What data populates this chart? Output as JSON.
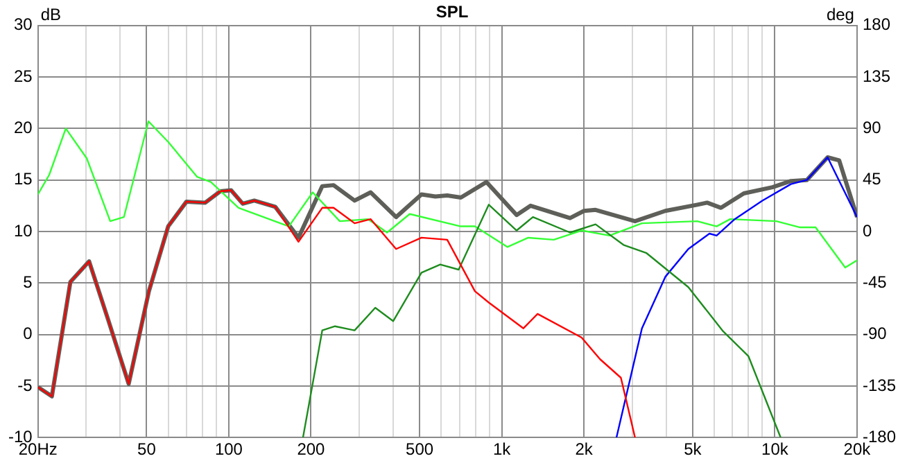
{
  "chart_data": {
    "type": "line",
    "title": "SPL",
    "ylabel": "dB",
    "y2label": "deg",
    "log": "x",
    "grid": true,
    "legend": false,
    "marker": "none",
    "line_style": "solid",
    "xlim": [
      20,
      20000
    ],
    "xticks": [
      {
        "value": 20,
        "label": "20Hz"
      },
      {
        "value": 30,
        "label": null
      },
      {
        "value": 40,
        "label": null
      },
      50,
      {
        "value": 60,
        "label": null
      },
      {
        "value": 70,
        "label": null
      },
      {
        "value": 80,
        "label": null
      },
      {
        "value": 90,
        "label": null
      },
      100,
      200,
      {
        "value": 300,
        "label": null
      },
      {
        "value": 400,
        "label": null
      },
      500,
      {
        "value": 600,
        "label": null
      },
      {
        "value": 700,
        "label": null
      },
      {
        "value": 800,
        "label": null
      },
      {
        "value": 900,
        "label": null
      },
      {
        "value": 1000,
        "label": "1k"
      },
      {
        "value": 2000,
        "label": "2k"
      },
      {
        "value": 3000,
        "label": null
      },
      {
        "value": 4000,
        "label": null
      },
      {
        "value": 5000,
        "label": "5k"
      },
      {
        "value": 6000,
        "label": null
      },
      {
        "value": 7000,
        "label": null
      },
      {
        "value": 8000,
        "label": null
      },
      {
        "value": 9000,
        "label": null
      },
      {
        "value": 10000,
        "label": "10k"
      },
      {
        "value": 20000,
        "label": "20k"
      }
    ],
    "ylim": [
      -10,
      30
    ],
    "yticks": [
      -10,
      -5,
      0,
      5,
      10,
      15,
      20,
      25,
      30
    ],
    "y2lim": [
      -180,
      180
    ],
    "y2ticks": [
      -180,
      -135,
      -90,
      -45,
      0,
      45,
      90,
      135,
      180
    ],
    "series": [
      {
        "color": "#5f5f5a",
        "x": [
          20,
          22.5,
          26.3,
          30.8,
          36.1,
          43,
          51,
          60,
          70,
          82,
          93,
          102,
          112.5,
          124,
          148,
          180,
          220,
          242,
          289,
          331,
          410,
          508,
          571,
          631,
          708,
          879,
          1133,
          1275,
          1778,
          2000,
          2205,
          3075,
          3970,
          5200,
          5650,
          6350,
          7700,
          9800,
          11450,
          13100,
          15600,
          17200,
          20000
        ],
        "values": [
          -5.1,
          -6,
          5.1,
          7.1,
          1.5,
          -4.8,
          4.2,
          10.5,
          12.9,
          12.8,
          13.9,
          14,
          12.7,
          13,
          12.4,
          9.4,
          14.4,
          14.5,
          13,
          13.8,
          11.4,
          13.6,
          13.4,
          13.5,
          13.3,
          14.8,
          11.6,
          12.5,
          11.3,
          12,
          12.1,
          11,
          12,
          12.6,
          12.8,
          12.3,
          13.7,
          14.3,
          14.9,
          15,
          17.2,
          16.9,
          11.4
        ]
      },
      {
        "color": "#ff0000",
        "x": [
          20,
          22.5,
          26.3,
          30.8,
          36.1,
          43,
          51,
          60,
          70,
          82,
          93,
          102,
          112.5,
          124,
          148,
          180,
          220,
          242,
          289,
          331,
          410,
          508,
          631,
          797,
          896,
          1200,
          1352,
          1960,
          2290,
          2730,
          3075
        ],
        "values": [
          -5.1,
          -6,
          5.1,
          7.1,
          1.5,
          -4.8,
          4.2,
          10.5,
          12.9,
          12.8,
          13.9,
          14,
          12.7,
          13,
          12.4,
          9,
          12.3,
          12.3,
          10.8,
          11.2,
          8.3,
          9.4,
          9.2,
          4.2,
          3.1,
          0.6,
          2,
          -0.3,
          -2.4,
          -4.2,
          -10
        ]
      },
      {
        "color": "#1e8c1e",
        "x": [
          187,
          220,
          245,
          289,
          344,
          400,
          508,
          595,
          695,
          896,
          1133,
          1300,
          1778,
          2205,
          2790,
          3390,
          4820,
          6470,
          8000,
          10500
        ],
        "values": [
          -10,
          0.4,
          0.8,
          0.4,
          2.6,
          1.3,
          6,
          6.8,
          6.3,
          12.6,
          10.1,
          11.4,
          9.9,
          10.7,
          8.7,
          7.9,
          4.6,
          0.3,
          -2.1,
          -10
        ]
      },
      {
        "color": "#0000ff",
        "x": [
          2630,
          3260,
          3970,
          4820,
          5760,
          6120,
          7130,
          9000,
          11450,
          13100,
          15600,
          20000
        ],
        "values": [
          -10,
          0.6,
          5.6,
          8.3,
          9.8,
          9.6,
          11.2,
          13,
          14.6,
          15,
          17.2,
          11.4
        ]
      },
      {
        "color": "#33ff33",
        "x": [
          20,
          22,
          25.3,
          30.2,
          36.8,
          41.3,
          50.8,
          60,
          76.6,
          86,
          108.6,
          166,
          203,
          255,
          324,
          380,
          460,
          707,
          797,
          1048,
          1250,
          1550,
          1960,
          2480,
          3260,
          5200,
          6120,
          6860,
          10130,
          12370,
          14100,
          18100,
          20000
        ],
        "values": [
          13.6,
          15.5,
          20,
          17.1,
          11,
          11.4,
          20.7,
          18.7,
          15.3,
          14.8,
          12.3,
          10.5,
          13.8,
          11,
          11.2,
          9.9,
          11.7,
          10.5,
          10.5,
          8.5,
          9.4,
          9.2,
          10.1,
          9.6,
          10.8,
          11,
          10.5,
          11.2,
          11,
          10.4,
          10.4,
          6.5,
          7.2
        ]
      }
    ]
  }
}
